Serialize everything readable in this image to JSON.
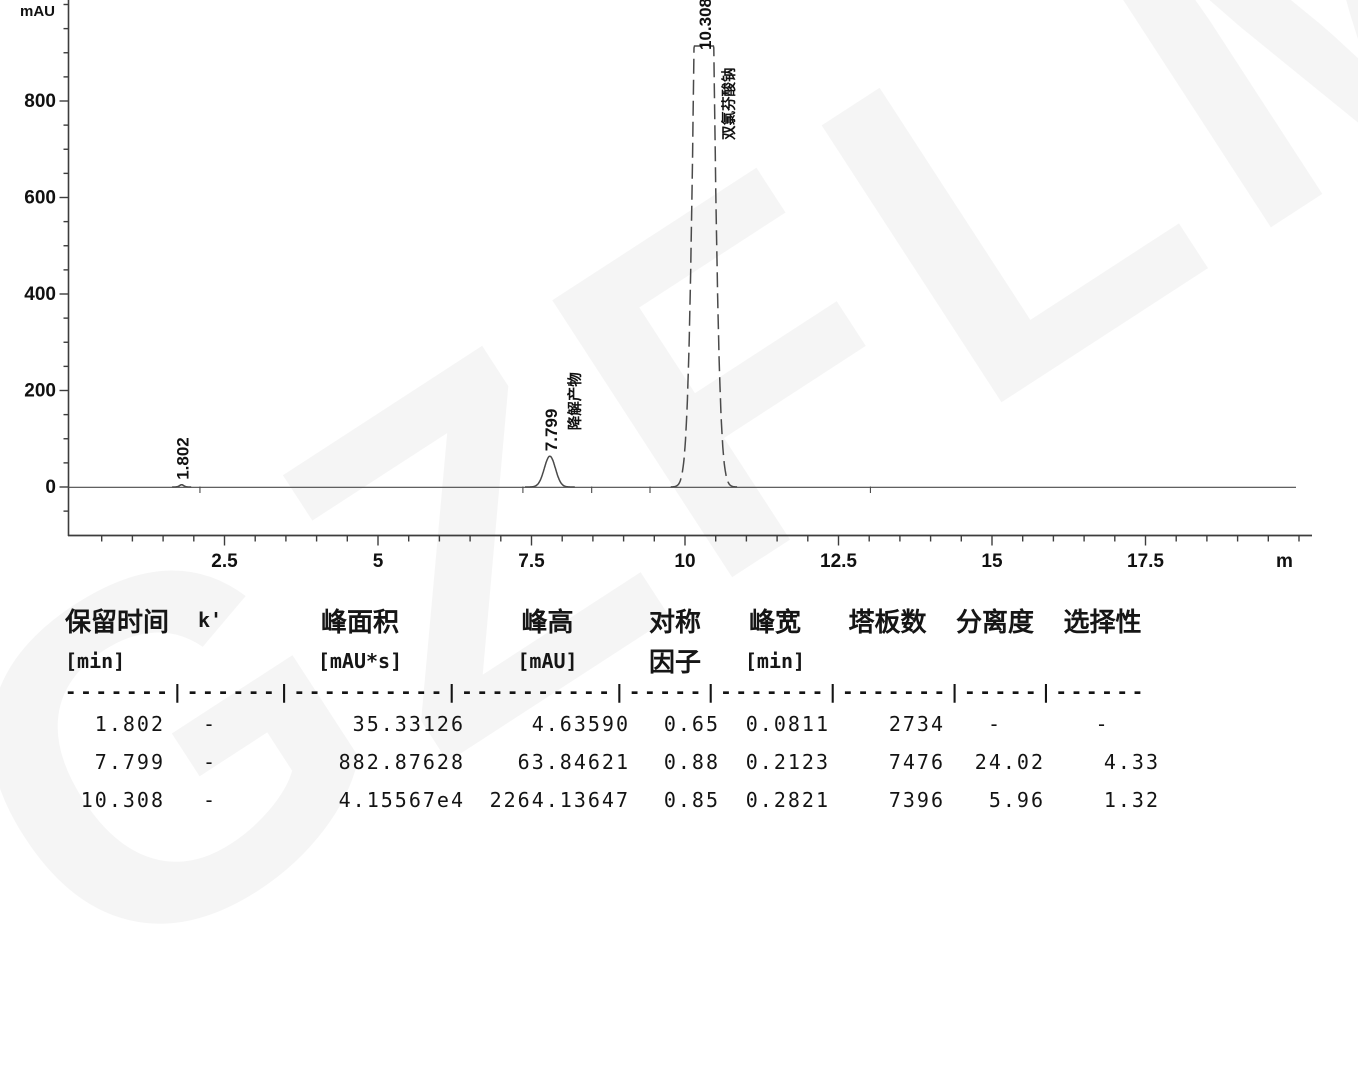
{
  "watermark_text": "GZFLM",
  "chart": {
    "y_axis_unit": "mAU",
    "x_axis_end_label": "m",
    "y_tick_labels": [
      "800",
      "600",
      "400",
      "200",
      "0"
    ],
    "x_tick_labels": [
      "2.5",
      "5",
      "7.5",
      "10",
      "12.5",
      "15",
      "17.5"
    ]
  },
  "chart_data": {
    "type": "line",
    "title": "",
    "xlabel": "m",
    "ylabel": "mAU",
    "xlim": [
      0,
      20.2
    ],
    "ylim": [
      -100,
      1010
    ],
    "grid": false,
    "legend": null,
    "y_major_ticks": [
      0,
      200,
      400,
      600,
      800
    ],
    "x_major_ticks": [
      2.5,
      5,
      7.5,
      10,
      12.5,
      15,
      17.5
    ],
    "peaks": [
      {
        "rt_min": 1.802,
        "height_mau": 4.6359,
        "width_min": 0.0811,
        "area_mau_s": 35.33126,
        "rt_label": "1.802",
        "compound_label": "",
        "clipped_at_top": false
      },
      {
        "rt_min": 7.799,
        "height_mau": 63.84621,
        "width_min": 0.2123,
        "area_mau_s": 882.87628,
        "rt_label": "7.799",
        "compound_label": "降解产物",
        "clipped_at_top": false
      },
      {
        "rt_min": 10.308,
        "height_mau": 2264.13647,
        "width_min": 0.2821,
        "area_mau_s": 41556.7,
        "rt_label": "10.308",
        "compound_label": "双氯芬酸钠",
        "clipped_at_top": true
      }
    ]
  },
  "table": {
    "headers_row1": [
      "保留时间",
      "k'",
      "峰面积",
      "峰高",
      "对称",
      "峰宽",
      "塔板数",
      "分离度",
      "选择性"
    ],
    "headers_row2": [
      "[min]",
      "",
      "[mAU*s]",
      "[mAU]",
      "因子",
      "[min]",
      "",
      "",
      ""
    ],
    "separator": "-------|------|----------|----------|-----|-------|-------|-----|------",
    "rows": [
      [
        "1.802",
        "-",
        "35.33126",
        "4.63590",
        "0.65",
        "0.0811",
        "2734",
        "-",
        "-"
      ],
      [
        "7.799",
        "-",
        "882.87628",
        "63.84621",
        "0.88",
        "0.2123",
        "7476",
        "24.02",
        "4.33"
      ],
      [
        "10.308",
        "-",
        "4.15567e4",
        "2264.13647",
        "0.85",
        "0.2821",
        "7396",
        "5.96",
        "1.32"
      ]
    ]
  }
}
